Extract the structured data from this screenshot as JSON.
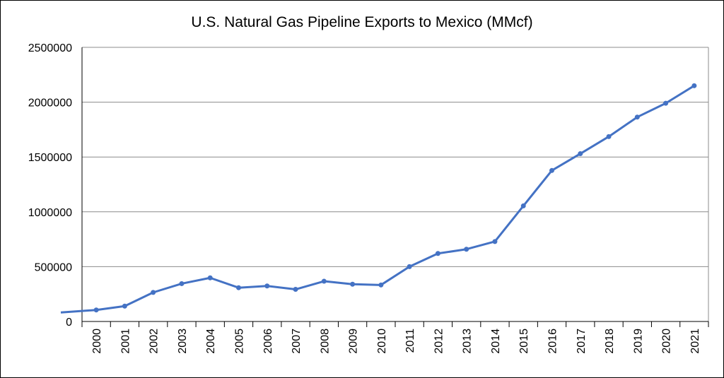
{
  "chart_data": {
    "type": "line",
    "title": "U.S. Natural Gas Pipeline Exports to Mexico (MMcf)",
    "xlabel": "",
    "ylabel": "",
    "ylim": [
      0,
      2500000
    ],
    "yticks": [
      "0",
      "500000",
      "1000000",
      "1500000",
      "2000000",
      "2500000"
    ],
    "grid": true,
    "legend": "none",
    "line_color": "#4472C4",
    "categories": [
      "2000",
      "2001",
      "2002",
      "2003",
      "2004",
      "2005",
      "2006",
      "2007",
      "2008",
      "2009",
      "2010",
      "2011",
      "2012",
      "2013",
      "2014",
      "2015",
      "2016",
      "2017",
      "2018",
      "2019",
      "2020",
      "2021"
    ],
    "series": [
      {
        "values": [
          105000,
          140000,
          265000,
          345000,
          398000,
          308000,
          324000,
          293000,
          367000,
          340000,
          333000,
          500000,
          620000,
          659000,
          729000,
          1054000,
          1377000,
          1530000,
          1686000,
          1864000,
          1990000,
          2150000
        ]
      }
    ],
    "leading_point": 82000
  }
}
